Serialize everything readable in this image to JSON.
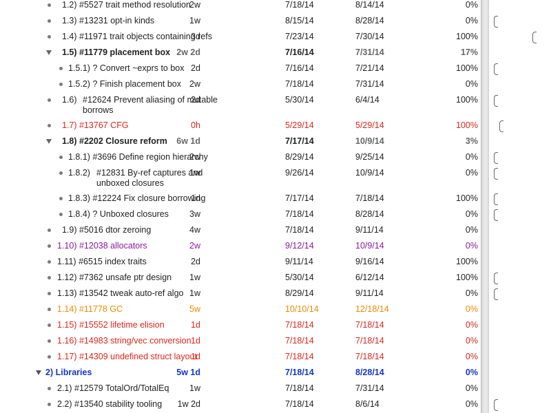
{
  "outline": {
    "rows": [
      {
        "num": "1.2)",
        "title": "#5527 trait method resolution",
        "duration": "2w",
        "start": "7/18/14",
        "end": "8/14/14",
        "percent": "0%"
      },
      {
        "num": "1.3)",
        "title": "#13231 opt-in kinds",
        "duration": "1w",
        "start": "8/15/14",
        "end": "8/28/14",
        "percent": "0%"
      },
      {
        "num": "1.4)",
        "title": "#11971 trait objects containing refs",
        "duration": "3d",
        "start": "7/23/14",
        "end": "7/30/14",
        "percent": "100%"
      },
      {
        "num": "1.5)",
        "title": "#11779 placement box",
        "duration": "2w 2d",
        "start": "7/16/14",
        "end": "7/31/14",
        "percent": "17%"
      },
      {
        "num": "1.5.1)",
        "title": "? Convert ~exprs to box",
        "duration": "2d",
        "start": "7/16/14",
        "end": "7/21/14",
        "percent": "100%"
      },
      {
        "num": "1.5.2)",
        "title": "? Finish placement box",
        "duration": "2w",
        "start": "7/18/14",
        "end": "7/31/14",
        "percent": "0%"
      },
      {
        "num": "1.6)",
        "title": "#12624 Prevent aliasing of mutable borrows",
        "duration": "2d",
        "start": "5/30/14",
        "end": "6/4/14",
        "percent": "100%"
      },
      {
        "num": "1.7)",
        "title": "#13767 CFG",
        "duration": "0h",
        "start": "5/29/14",
        "end": "5/29/14",
        "percent": "100%"
      },
      {
        "num": "1.8)",
        "title": "#2202 Closure reform",
        "duration": "6w 1d",
        "start": "7/17/14",
        "end": "10/9/14",
        "percent": "3%"
      },
      {
        "num": "1.8.1)",
        "title": "#3696 Define region hierarchy",
        "duration": "2w",
        "start": "8/29/14",
        "end": "9/25/14",
        "percent": "0%"
      },
      {
        "num": "1.8.2)",
        "title": "#12831 By-ref captures and unboxed closures",
        "duration": "1w",
        "start": "9/26/14",
        "end": "10/9/14",
        "percent": "0%"
      },
      {
        "num": "1.8.3)",
        "title": "#12224 Fix closure borrowing",
        "duration": "1d",
        "start": "7/17/14",
        "end": "7/18/14",
        "percent": "100%"
      },
      {
        "num": "1.8.4)",
        "title": "? Unboxed closures",
        "duration": "3w",
        "start": "7/18/14",
        "end": "8/28/14",
        "percent": "0%"
      },
      {
        "num": "1.9)",
        "title": "#5016 dtor zeroing",
        "duration": "4w",
        "start": "7/18/14",
        "end": "9/11/14",
        "percent": "0%"
      },
      {
        "num": "1.10)",
        "title": "#12038 allocators",
        "duration": "2w",
        "start": "9/12/14",
        "end": "10/9/14",
        "percent": "0%"
      },
      {
        "num": "1.11)",
        "title": "#6515 index traits",
        "duration": "2d",
        "start": "9/11/14",
        "end": "9/16/14",
        "percent": "100%"
      },
      {
        "num": "1.12)",
        "title": "#7362 unsafe ptr design",
        "duration": "1w",
        "start": "5/30/14",
        "end": "6/12/14",
        "percent": "100%"
      },
      {
        "num": "1.13)",
        "title": "#13542 tweak auto-ref algo",
        "duration": "1w",
        "start": "8/29/14",
        "end": "9/11/14",
        "percent": "0%"
      },
      {
        "num": "1.14)",
        "title": "#11778 GC",
        "duration": "5w",
        "start": "10/10/14",
        "end": "12/18/14",
        "percent": "0%"
      },
      {
        "num": "1.15)",
        "title": "#15552 lifetime elision",
        "duration": "1d",
        "start": "7/18/14",
        "end": "7/18/14",
        "percent": "0%"
      },
      {
        "num": "1.16)",
        "title": "#14983 string/vec conversion",
        "duration": "1d",
        "start": "7/18/14",
        "end": "7/18/14",
        "percent": "0%"
      },
      {
        "num": "1.17)",
        "title": "#14309 undefined struct layout",
        "duration": "1d",
        "start": "7/18/14",
        "end": "7/18/14",
        "percent": "0%"
      },
      {
        "num": "2)",
        "title": "Libraries",
        "duration": "5w 1d",
        "start": "7/18/14",
        "end": "8/28/14",
        "percent": "0%"
      },
      {
        "num": "2.1)",
        "title": "#12579 TotalOrd/TotalEq",
        "duration": "1w",
        "start": "7/18/14",
        "end": "7/31/14",
        "percent": "0%"
      },
      {
        "num": "2.2)",
        "title": "#13540 stability tooling",
        "duration": "1w 2d",
        "start": "7/18/14",
        "end": "8/6/14",
        "percent": "0%"
      }
    ]
  },
  "icons": {
    "bullet": "bullet-dot-icon",
    "disclosure": "disclosure-triangle-expanded-icon",
    "gantt_marker": "gantt-bracket-icon"
  },
  "colors": {
    "overdue_red": "#e0261a",
    "purple": "#8b1a9e",
    "orange": "#f08a00",
    "group_blue": "#1436c8",
    "summary_grey": "#666666"
  }
}
